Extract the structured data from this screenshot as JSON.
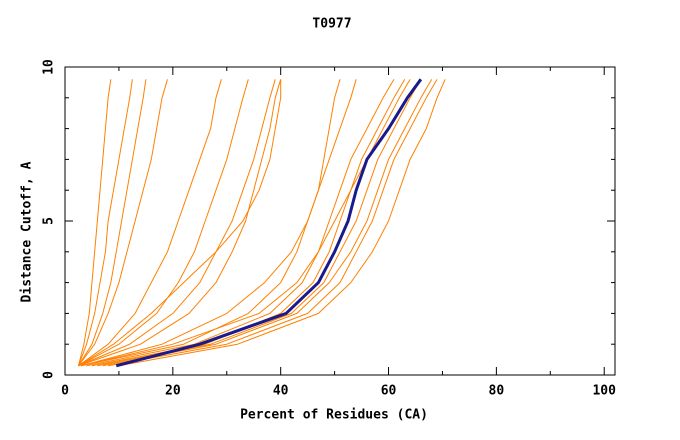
{
  "chart_data": {
    "type": "line",
    "title": "T0977",
    "x_label": "Percent of Residues (CA)",
    "y_label": "Distance Cutoff, A",
    "xlim": [
      0,
      102
    ],
    "ylim": [
      0,
      10
    ],
    "xticks": [
      0,
      20,
      40,
      60,
      80,
      100
    ],
    "yticks": [
      0,
      5,
      10
    ],
    "minor_xticks": [
      10,
      30,
      50,
      70,
      90
    ],
    "minor_yticks": [
      1,
      2,
      3,
      4,
      6,
      7,
      8,
      9
    ],
    "series": [
      {
        "color": "#ff8000",
        "x": [
          2.5,
          3.5,
          4.5,
          5,
          5.5,
          6,
          6.5,
          7,
          7.5,
          8,
          8.5
        ],
        "values": [
          0.3,
          1,
          2,
          3,
          4,
          5,
          6,
          7,
          8,
          9,
          9.6
        ]
      },
      {
        "color": "#ff8000",
        "x": [
          2.5,
          4,
          5.5,
          6.5,
          7.5,
          8,
          9,
          10,
          11,
          12,
          12.5
        ],
        "values": [
          0.3,
          1,
          2,
          3,
          4,
          5,
          6,
          7,
          8,
          9,
          9.6
        ]
      },
      {
        "color": "#ff8000",
        "x": [
          2.5,
          5,
          7,
          8.5,
          9.5,
          10.5,
          11.5,
          12.5,
          13.5,
          14.5,
          15
        ],
        "values": [
          0.3,
          1,
          2,
          3,
          4,
          5,
          6,
          7,
          8,
          9,
          9.6
        ]
      },
      {
        "color": "#ff8000",
        "x": [
          2.5,
          5.5,
          8,
          10,
          11.5,
          13,
          14.5,
          16,
          17,
          18,
          19
        ],
        "values": [
          0.3,
          1,
          2,
          3,
          4,
          5,
          6,
          7,
          8,
          9,
          9.6
        ]
      },
      {
        "color": "#ff8000",
        "x": [
          2.5,
          8,
          13,
          16,
          19,
          21,
          23,
          25,
          27,
          28,
          29
        ],
        "values": [
          0.3,
          1,
          2,
          3,
          4,
          5,
          6,
          7,
          8,
          9,
          9.6
        ]
      },
      {
        "color": "#ff8000",
        "x": [
          2.5,
          10,
          17,
          21,
          24,
          26,
          28,
          30,
          31.5,
          33,
          34
        ],
        "values": [
          0.3,
          1,
          2,
          3,
          4,
          5,
          6,
          7,
          8,
          9,
          9.6
        ]
      },
      {
        "color": "#ff8000",
        "x": [
          2.5,
          12,
          20,
          25,
          28,
          31,
          33,
          35,
          36.5,
          38,
          39
        ],
        "values": [
          0.3,
          1,
          2,
          3,
          4,
          5,
          6,
          7,
          8,
          9,
          9.6
        ]
      },
      {
        "color": "#ff8000",
        "x": [
          2.5,
          14,
          23,
          28,
          31,
          33.5,
          35,
          36.5,
          38,
          39,
          40
        ],
        "values": [
          0.3,
          1,
          2,
          3,
          4,
          5,
          6,
          7,
          8,
          9,
          9.6
        ]
      },
      {
        "color": "#ff8000",
        "x": [
          2.5,
          9,
          16,
          22,
          28,
          33,
          36,
          38,
          39,
          40,
          40
        ],
        "values": [
          0.3,
          1,
          2,
          3,
          4,
          5,
          6,
          7,
          8,
          9,
          9.6
        ]
      },
      {
        "color": "#ff8000",
        "x": [
          3,
          18,
          30,
          37,
          42,
          45,
          47,
          48,
          49,
          50,
          51
        ],
        "values": [
          0.3,
          1,
          2,
          3,
          4,
          5,
          6,
          7,
          8,
          9,
          9.6
        ]
      },
      {
        "color": "#ff8000",
        "x": [
          3,
          22,
          34,
          40,
          43,
          45,
          47,
          49,
          51,
          53,
          54
        ],
        "values": [
          0.3,
          1,
          2,
          3,
          4,
          5,
          6,
          7,
          8,
          9,
          9.6
        ]
      },
      {
        "color": "#ff8000",
        "x": [
          4,
          24,
          38,
          44,
          47,
          49,
          51,
          53,
          56,
          59,
          61
        ],
        "values": [
          0.3,
          1,
          2,
          3,
          4,
          5,
          6,
          7,
          8,
          9,
          9.6
        ]
      },
      {
        "color": "#ff8000",
        "x": [
          6,
          27,
          42,
          48,
          51,
          54,
          56,
          58,
          61,
          64,
          66
        ],
        "values": [
          0.3,
          1,
          2,
          3,
          4,
          5,
          6,
          7,
          8,
          9,
          9.6
        ]
      },
      {
        "color": "#ff8000",
        "x": [
          8,
          30,
          45,
          51,
          54,
          57,
          59,
          61,
          64,
          67,
          69
        ],
        "values": [
          0.3,
          1,
          2,
          3,
          4,
          5,
          6,
          7,
          8,
          9,
          9.6
        ]
      },
      {
        "color": "#ff8000",
        "x": [
          10,
          32,
          47,
          53,
          57,
          60,
          62,
          64,
          67,
          69,
          70.5
        ],
        "values": [
          0.3,
          1,
          2,
          3,
          4,
          5,
          6,
          7,
          8,
          9,
          9.6
        ]
      },
      {
        "color": "#ff8000",
        "x": [
          5,
          26,
          40,
          46,
          49,
          51,
          53,
          55,
          58,
          61,
          63
        ],
        "values": [
          0.3,
          1,
          2,
          3,
          4,
          5,
          6,
          7,
          8,
          9,
          9.6
        ]
      },
      {
        "color": "#ff8000",
        "x": [
          7,
          28,
          43,
          49,
          53,
          56,
          58,
          60,
          63,
          66,
          68
        ],
        "values": [
          0.3,
          1,
          2,
          3,
          4,
          5,
          6,
          7,
          8,
          9,
          9.6
        ]
      },
      {
        "color": "#ff8000",
        "x": [
          3,
          20,
          36,
          43,
          47,
          50,
          53,
          56,
          59,
          62,
          64
        ],
        "values": [
          0.3,
          1,
          2,
          3,
          4,
          5,
          6,
          7,
          8,
          9,
          9.6
        ]
      },
      {
        "color": "#1a1a8c",
        "x": [
          9.5,
          25,
          41,
          47,
          50,
          52.5,
          54,
          56,
          60,
          63.5,
          66
        ],
        "values": [
          0.3,
          1,
          2,
          3,
          4,
          5,
          6,
          7,
          8,
          9,
          9.6
        ]
      }
    ]
  }
}
